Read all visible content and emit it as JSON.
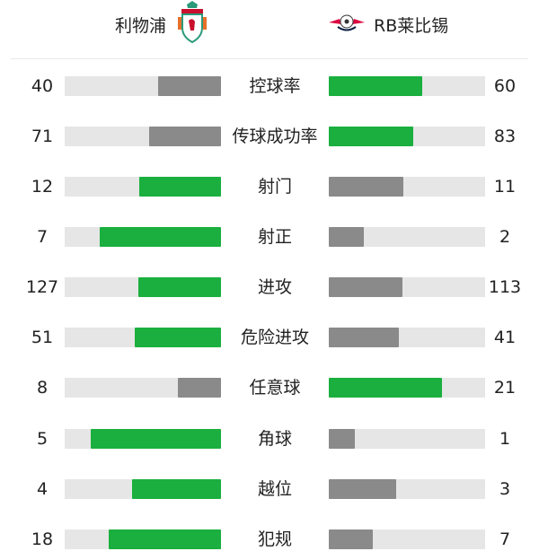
{
  "header": {
    "home": {
      "name": "利物浦",
      "logo": "liverpool-crest"
    },
    "away": {
      "name": "RB莱比锡",
      "logo": "rb-leipzig-crest"
    }
  },
  "colors": {
    "leader": "#1aaf3e",
    "trailer": "#8a8a8a",
    "track": "#e6e6e6"
  },
  "stats": [
    {
      "label": "控球率",
      "home": "40",
      "away": "60"
    },
    {
      "label": "传球成功率",
      "home": "71",
      "away": "83"
    },
    {
      "label": "射门",
      "home": "12",
      "away": "11"
    },
    {
      "label": "射正",
      "home": "7",
      "away": "2"
    },
    {
      "label": "进攻",
      "home": "127",
      "away": "113"
    },
    {
      "label": "危险进攻",
      "home": "51",
      "away": "41"
    },
    {
      "label": "任意球",
      "home": "8",
      "away": "21"
    },
    {
      "label": "角球",
      "home": "5",
      "away": "1"
    },
    {
      "label": "越位",
      "home": "4",
      "away": "3"
    },
    {
      "label": "犯规",
      "home": "18",
      "away": "7"
    }
  ]
}
